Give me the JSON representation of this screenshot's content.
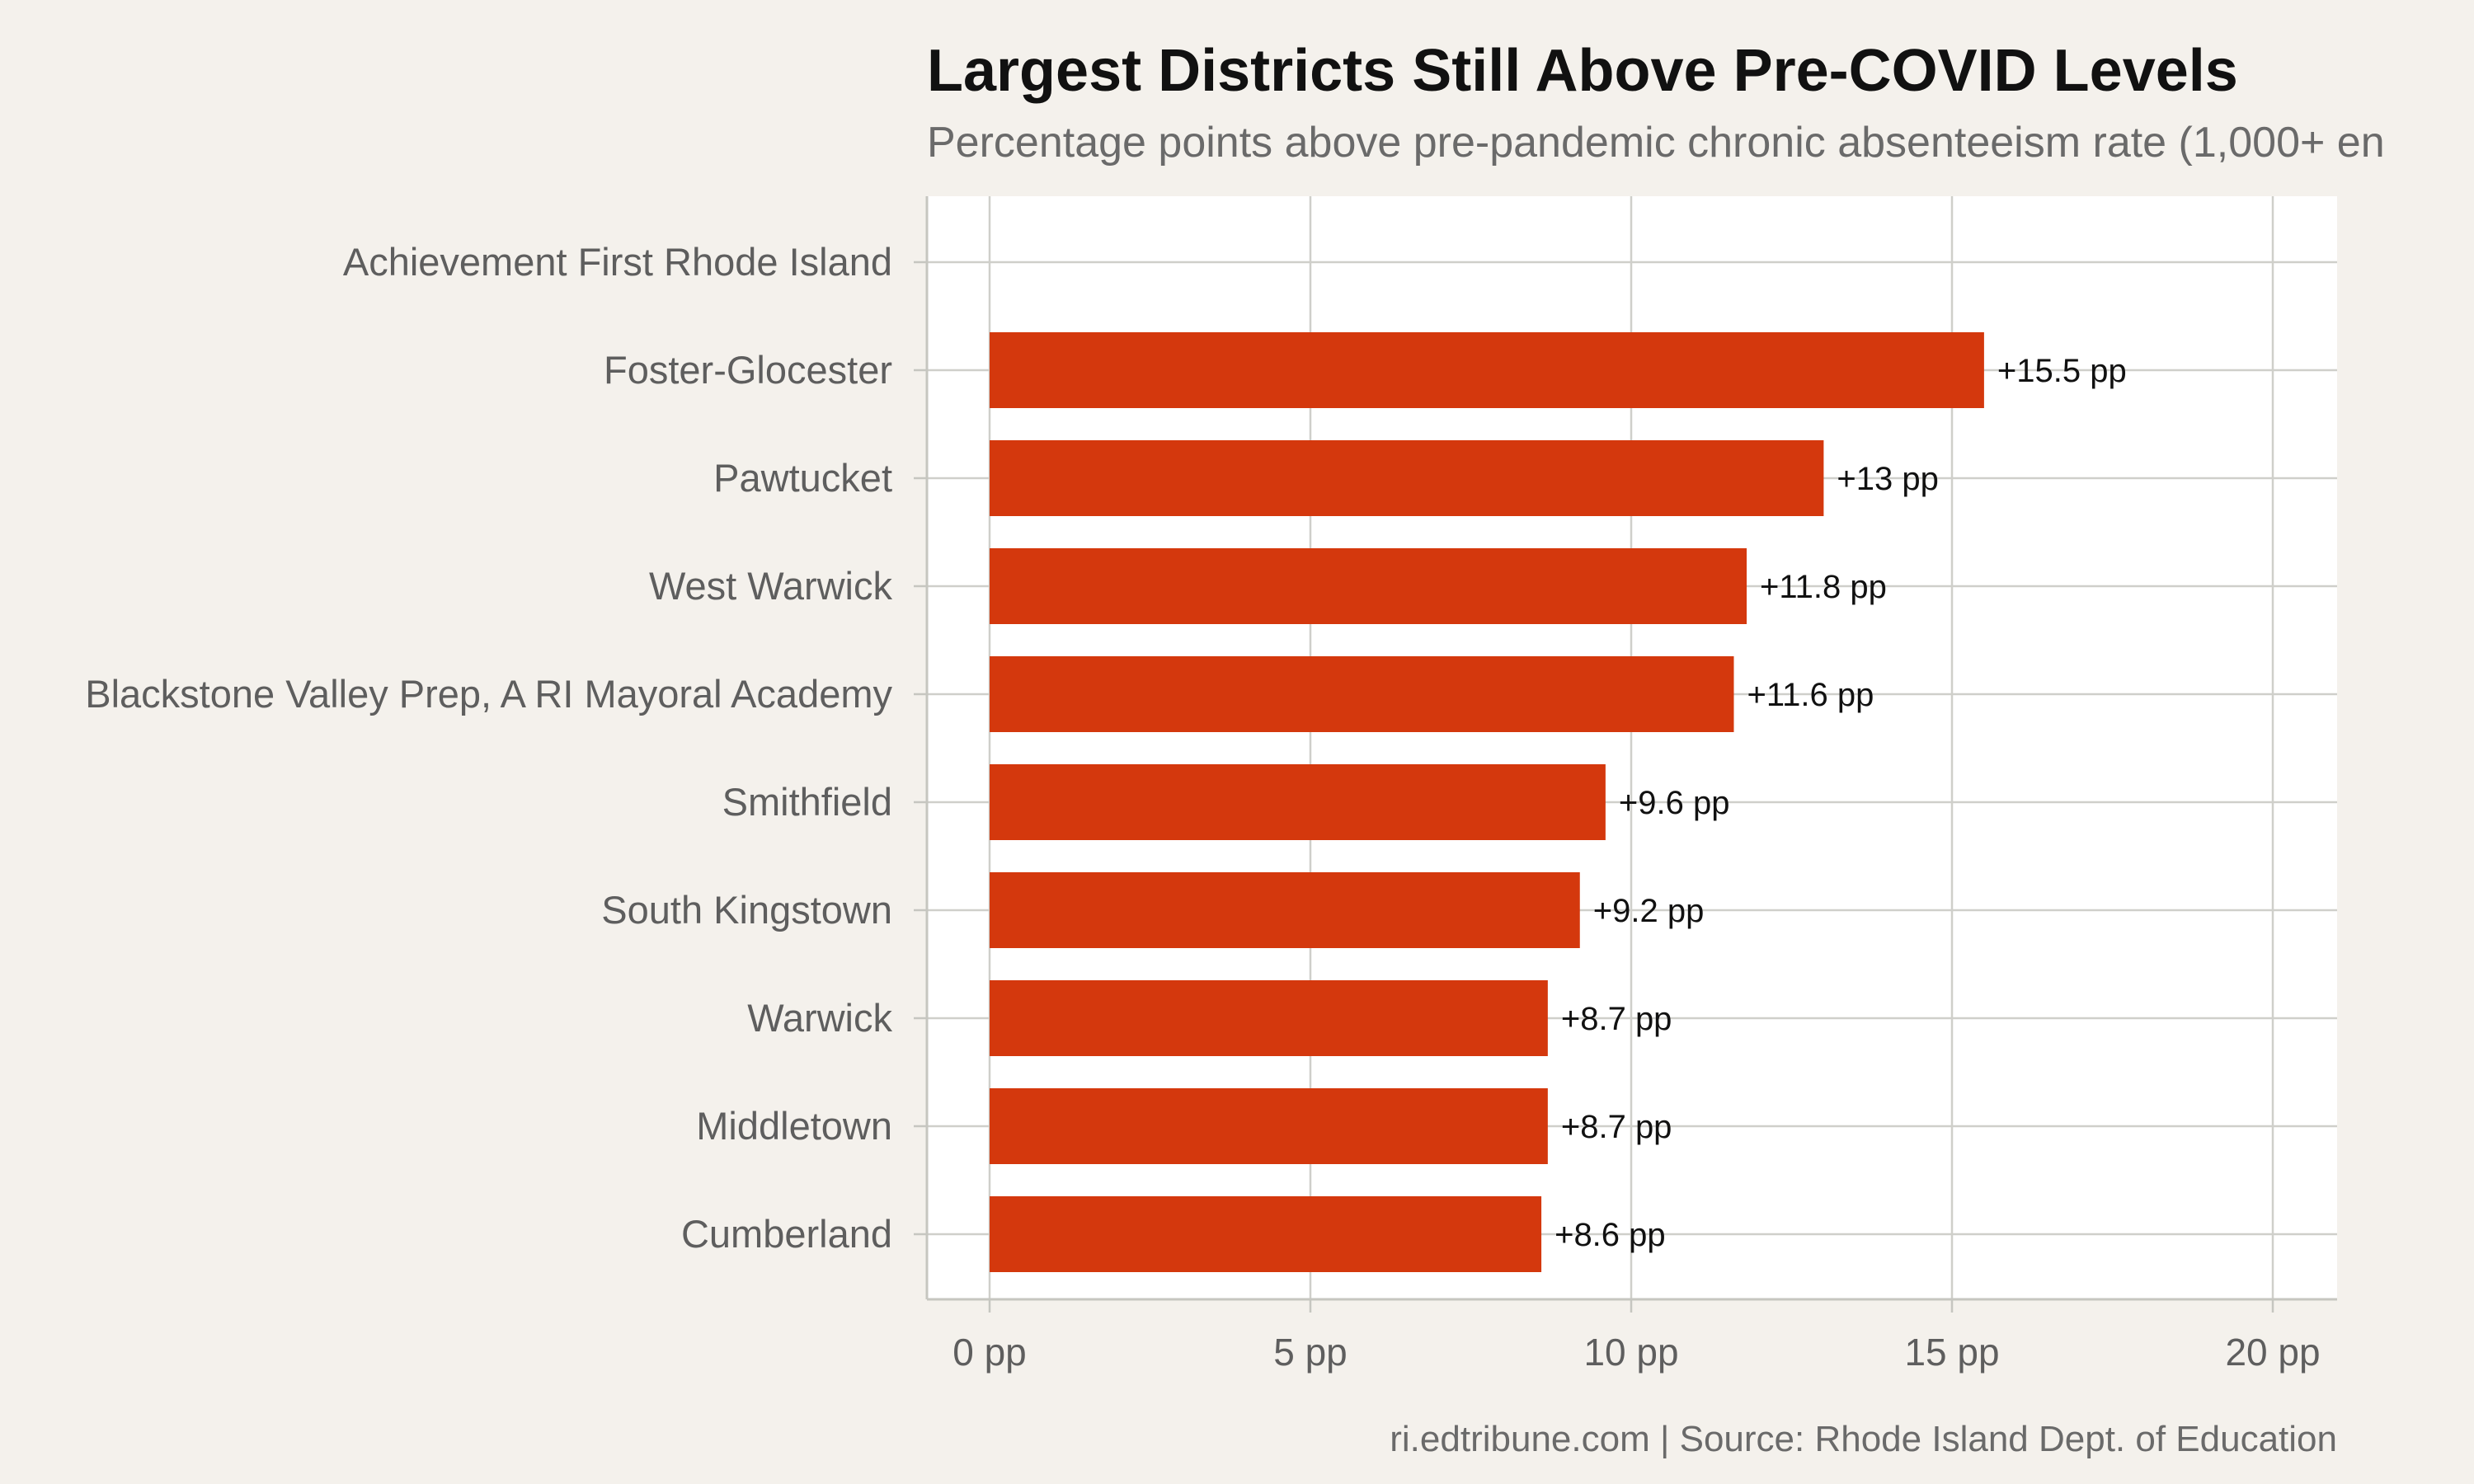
{
  "chart_data": {
    "type": "bar",
    "orientation": "horizontal",
    "title": "Largest Districts Still Above Pre-COVID Levels",
    "subtitle": "Percentage points above pre-pandemic chronic absenteeism rate (1,000+ en",
    "caption": "ri.edtribune.com | Source: Rhode Island Dept. of Education",
    "xlabel": "",
    "ylabel": "",
    "xlim": [
      0,
      21
    ],
    "x_ticks": [
      0,
      5,
      10,
      15,
      20
    ],
    "x_tick_labels": [
      "0 pp",
      "5 pp",
      "10 pp",
      "15 pp",
      "20 pp"
    ],
    "grid": true,
    "bar_color": "#d4380d",
    "categories": [
      "Achievement First Rhode Island",
      "Foster-Glocester",
      "Pawtucket",
      "West Warwick",
      "Blackstone Valley Prep, A RI Mayoral Academy",
      "Smithfield",
      "South Kingstown",
      "Warwick",
      "Middletown",
      "Cumberland"
    ],
    "values": [
      null,
      15.5,
      13,
      11.8,
      11.6,
      9.6,
      9.2,
      8.7,
      8.7,
      8.6
    ],
    "data_labels": [
      "",
      "+15.5 pp",
      "+13 pp",
      "+11.8 pp",
      "+11.6 pp",
      "+9.6 pp",
      "+9.2 pp",
      "+8.7 pp",
      "+8.7 pp",
      "+8.6 pp"
    ]
  }
}
